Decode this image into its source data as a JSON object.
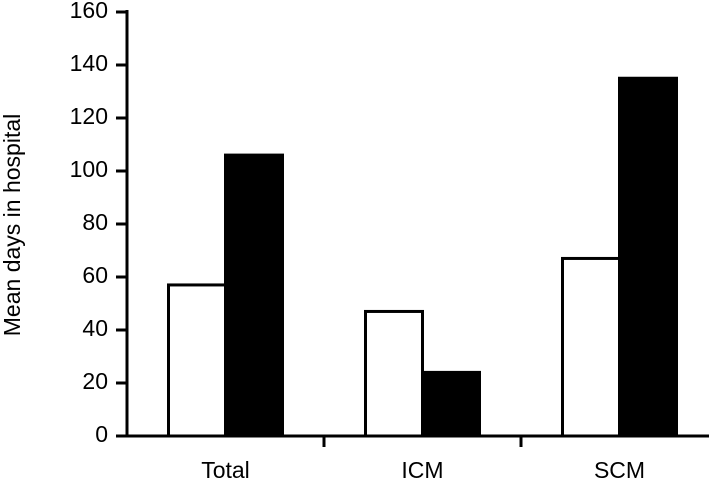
{
  "chart_data": {
    "type": "bar",
    "y_label": "Mean days in hospital",
    "categories": [
      "Total",
      "ICM",
      "SCM"
    ],
    "series": [
      {
        "color": "#ffffff",
        "values": [
          57,
          47,
          67
        ]
      },
      {
        "color": "#000000",
        "values": [
          106,
          24,
          135
        ]
      }
    ],
    "ylim": [
      0,
      160
    ],
    "yticks": [
      0,
      20,
      40,
      60,
      80,
      100,
      120,
      140,
      160
    ],
    "grid": false
  }
}
